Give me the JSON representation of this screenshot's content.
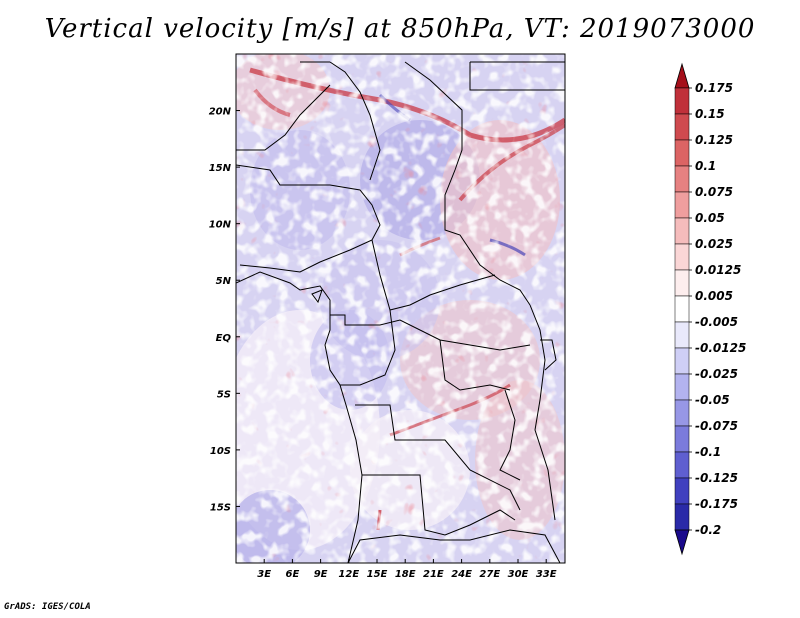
{
  "title": "Vertical velocity [m/s] at 850hPa, VT: 2019073000",
  "footer": "GrADS: IGES/COLA",
  "map": {
    "region": "Central Africa",
    "variable": "Vertical velocity",
    "units": "m/s",
    "level": "850hPa",
    "valid_time": "2019073000",
    "lon_range": [
      0,
      35
    ],
    "lat_range": [
      -20,
      25
    ],
    "lon_ticks": [
      {
        "label": "3E",
        "lon": 3
      },
      {
        "label": "6E",
        "lon": 6
      },
      {
        "label": "9E",
        "lon": 9
      },
      {
        "label": "12E",
        "lon": 12
      },
      {
        "label": "15E",
        "lon": 15
      },
      {
        "label": "18E",
        "lon": 18
      },
      {
        "label": "21E",
        "lon": 21
      },
      {
        "label": "24E",
        "lon": 24
      },
      {
        "label": "27E",
        "lon": 27
      },
      {
        "label": "30E",
        "lon": 30
      },
      {
        "label": "33E",
        "lon": 33
      }
    ],
    "lat_ticks": [
      {
        "label": "20N",
        "lat": 20
      },
      {
        "label": "15N",
        "lat": 15
      },
      {
        "label": "10N",
        "lat": 10
      },
      {
        "label": "5N",
        "lat": 5
      },
      {
        "label": "EQ",
        "lat": 0
      },
      {
        "label": "5S",
        "lat": -5
      },
      {
        "label": "10S",
        "lat": -10
      },
      {
        "label": "15S",
        "lat": -15
      }
    ]
  },
  "colorbar": {
    "levels": [
      {
        "label": "0.175",
        "color": "#b2182b"
      },
      {
        "label": "0.15",
        "color": "#c0303a"
      },
      {
        "label": "0.125",
        "color": "#cf4a4f"
      },
      {
        "label": "0.1",
        "color": "#dc6464"
      },
      {
        "label": "0.075",
        "color": "#e68181"
      },
      {
        "label": "0.05",
        "color": "#ef9e9e"
      },
      {
        "label": "0.025",
        "color": "#f5bcbc"
      },
      {
        "label": "0.0125",
        "color": "#fad6d6"
      },
      {
        "label": "0.005",
        "color": "#fdeeee"
      },
      {
        "label": "-0.005",
        "color": "#ffffff"
      },
      {
        "label": "-0.0125",
        "color": "#e9e9fb"
      },
      {
        "label": "-0.025",
        "color": "#cfcff6"
      },
      {
        "label": "-0.05",
        "color": "#b3b3ef"
      },
      {
        "label": "-0.075",
        "color": "#9797e6"
      },
      {
        "label": "-0.1",
        "color": "#7b7bdc"
      },
      {
        "label": "-0.125",
        "color": "#5f5fd0"
      },
      {
        "label": "-0.175",
        "color": "#4040bf"
      },
      {
        "label": "-0.2",
        "color": "#2a2aa8"
      }
    ],
    "top_arrow_color": "#a50f1a",
    "bottom_arrow_color": "#1a0a8c"
  }
}
